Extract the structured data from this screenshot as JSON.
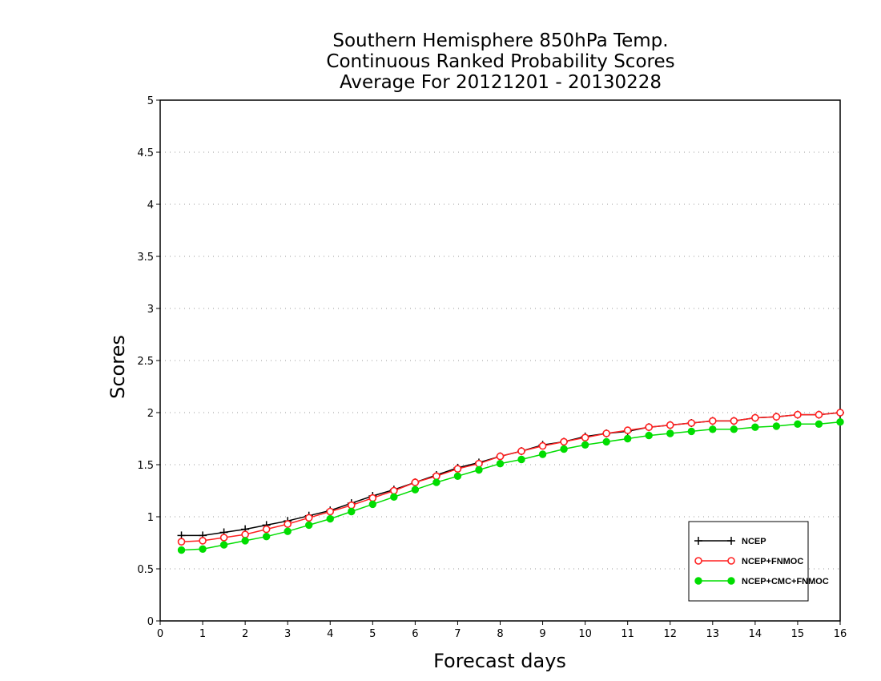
{
  "chart_data": {
    "type": "line",
    "title": [
      "Southern Hemisphere 850hPa Temp.",
      "Continuous Ranked Probability Scores",
      "Average For 20121201 - 20130228"
    ],
    "xlabel": "Forecast days",
    "ylabel": "Scores",
    "xlim": [
      0,
      16
    ],
    "ylim": [
      0,
      5
    ],
    "xticks": [
      "0",
      "1",
      "2",
      "3",
      "4",
      "5",
      "6",
      "7",
      "8",
      "9",
      "10",
      "11",
      "12",
      "13",
      "14",
      "15",
      "16"
    ],
    "yticks": [
      "0",
      "0.5",
      "1",
      "1.5",
      "2",
      "2.5",
      "3",
      "3.5",
      "4",
      "4.5",
      "5"
    ],
    "grid": true,
    "legend_position": "bottom-right",
    "x": [
      0.5,
      1,
      1.5,
      2,
      2.5,
      3,
      3.5,
      4,
      4.5,
      5,
      5.5,
      6,
      6.5,
      7,
      7.5,
      8,
      8.5,
      9,
      9.5,
      10,
      10.5,
      11,
      11.5,
      12,
      12.5,
      13,
      13.5,
      14,
      14.5,
      15,
      15.5,
      16
    ],
    "series": [
      {
        "name": "NCEP",
        "color": "#000000",
        "marker": "plus",
        "values": [
          0.82,
          0.82,
          0.85,
          0.88,
          0.92,
          0.96,
          1.01,
          1.06,
          1.13,
          1.2,
          1.26,
          1.33,
          1.4,
          1.47,
          1.52,
          1.58,
          1.63,
          1.69,
          1.72,
          1.77,
          1.8,
          1.82,
          1.86,
          1.88,
          1.9,
          1.92,
          1.92,
          1.95,
          1.96,
          1.98,
          1.98,
          2.0
        ]
      },
      {
        "name": "NCEP+FNMOC",
        "color": "#ff2020",
        "marker": "open-circle",
        "values": [
          0.76,
          0.77,
          0.8,
          0.83,
          0.88,
          0.93,
          0.99,
          1.05,
          1.11,
          1.18,
          1.25,
          1.33,
          1.39,
          1.46,
          1.51,
          1.58,
          1.63,
          1.68,
          1.72,
          1.76,
          1.8,
          1.83,
          1.86,
          1.88,
          1.9,
          1.92,
          1.92,
          1.95,
          1.96,
          1.98,
          1.98,
          2.0
        ]
      },
      {
        "name": "NCEP+CMC+FNMOC",
        "color": "#00dd00",
        "marker": "filled-circle",
        "values": [
          0.68,
          0.69,
          0.73,
          0.77,
          0.81,
          0.86,
          0.92,
          0.98,
          1.05,
          1.12,
          1.19,
          1.26,
          1.33,
          1.39,
          1.45,
          1.51,
          1.55,
          1.6,
          1.65,
          1.69,
          1.72,
          1.75,
          1.78,
          1.8,
          1.82,
          1.84,
          1.84,
          1.86,
          1.87,
          1.89,
          1.89,
          1.91
        ]
      }
    ]
  }
}
